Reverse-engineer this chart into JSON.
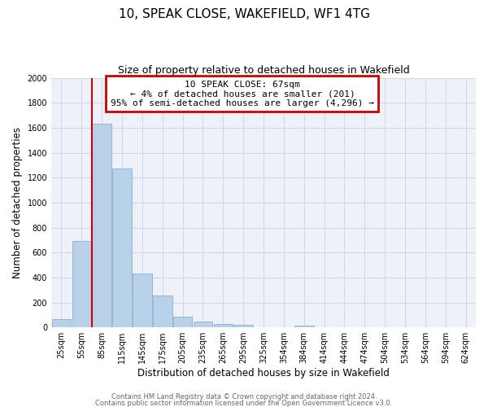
{
  "title": "10, SPEAK CLOSE, WAKEFIELD, WF1 4TG",
  "subtitle": "Size of property relative to detached houses in Wakefield",
  "xlabel": "Distribution of detached houses by size in Wakefield",
  "ylabel": "Number of detached properties",
  "bar_labels": [
    "25sqm",
    "55sqm",
    "85sqm",
    "115sqm",
    "145sqm",
    "175sqm",
    "205sqm",
    "235sqm",
    "265sqm",
    "295sqm",
    "325sqm",
    "354sqm",
    "384sqm",
    "414sqm",
    "444sqm",
    "474sqm",
    "504sqm",
    "534sqm",
    "564sqm",
    "594sqm",
    "624sqm"
  ],
  "bar_values": [
    65,
    695,
    1630,
    1275,
    430,
    255,
    85,
    50,
    30,
    20,
    0,
    0,
    12,
    0,
    0,
    0,
    0,
    0,
    0,
    0,
    0
  ],
  "bar_color": "#b8d0e8",
  "bar_edge_color": "#7aa8d0",
  "ylim": [
    0,
    2000
  ],
  "yticks": [
    0,
    200,
    400,
    600,
    800,
    1000,
    1200,
    1400,
    1600,
    1800,
    2000
  ],
  "red_line_x": 1.5,
  "annotation_title": "10 SPEAK CLOSE: 67sqm",
  "annotation_line1": "← 4% of detached houses are smaller (201)",
  "annotation_line2": "95% of semi-detached houses are larger (4,296) →",
  "annotation_box_color": "#ffffff",
  "annotation_box_edge": "#cc0000",
  "red_line_color": "#cc0000",
  "footer1": "Contains HM Land Registry data © Crown copyright and database right 2024.",
  "footer2": "Contains public sector information licensed under the Open Government Licence v3.0.",
  "bg_color": "#ffffff",
  "grid_color": "#d0d8e8",
  "title_fontsize": 11,
  "subtitle_fontsize": 9,
  "axis_label_fontsize": 8.5,
  "tick_fontsize": 7,
  "footer_fontsize": 6
}
